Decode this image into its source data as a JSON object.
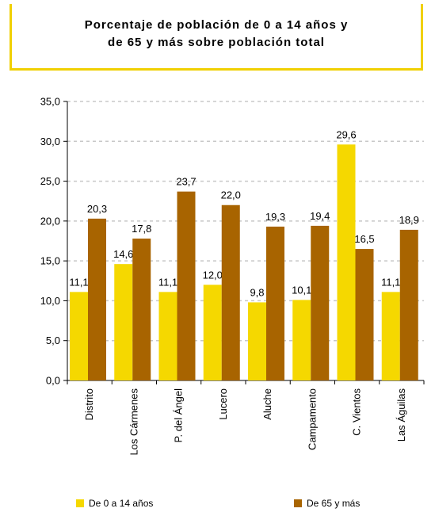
{
  "chart_data": {
    "type": "bar",
    "title_lines": [
      "Porcentaje de población de 0 a 14 años y",
      "de 65 y más sobre población total"
    ],
    "categories": [
      "Distrito",
      "Los Cármenes",
      "P. del Ángel",
      "Lucero",
      "Aluche",
      "Campamento",
      "C. Vientos",
      "Las Águilas"
    ],
    "series": [
      {
        "name": "De 0 a 14 años",
        "color": "#f5d800",
        "values": [
          11.1,
          14.6,
          11.1,
          12.0,
          9.8,
          10.1,
          29.6,
          11.1
        ],
        "labels": [
          "11,1",
          "14,6",
          "11,1",
          "12,0",
          "9,8",
          "10,1",
          "29,6",
          "11,1"
        ]
      },
      {
        "name": "De 65 y más",
        "color": "#a86400",
        "values": [
          20.3,
          17.8,
          23.7,
          22.0,
          19.3,
          19.4,
          16.5,
          18.9
        ],
        "labels": [
          "20,3",
          "17,8",
          "23,7",
          "22,0",
          "19,3",
          "19,4",
          "16,5",
          "18,9"
        ]
      }
    ],
    "ylim": [
      0,
      35
    ],
    "yticks": [
      0,
      5,
      10,
      15,
      20,
      25,
      30,
      35
    ],
    "ytick_labels": [
      "0,0",
      "5,0",
      "10,0",
      "15,0",
      "20,0",
      "25,0",
      "30,0",
      "35,0"
    ],
    "grid": true,
    "legend_position": "bottom"
  }
}
